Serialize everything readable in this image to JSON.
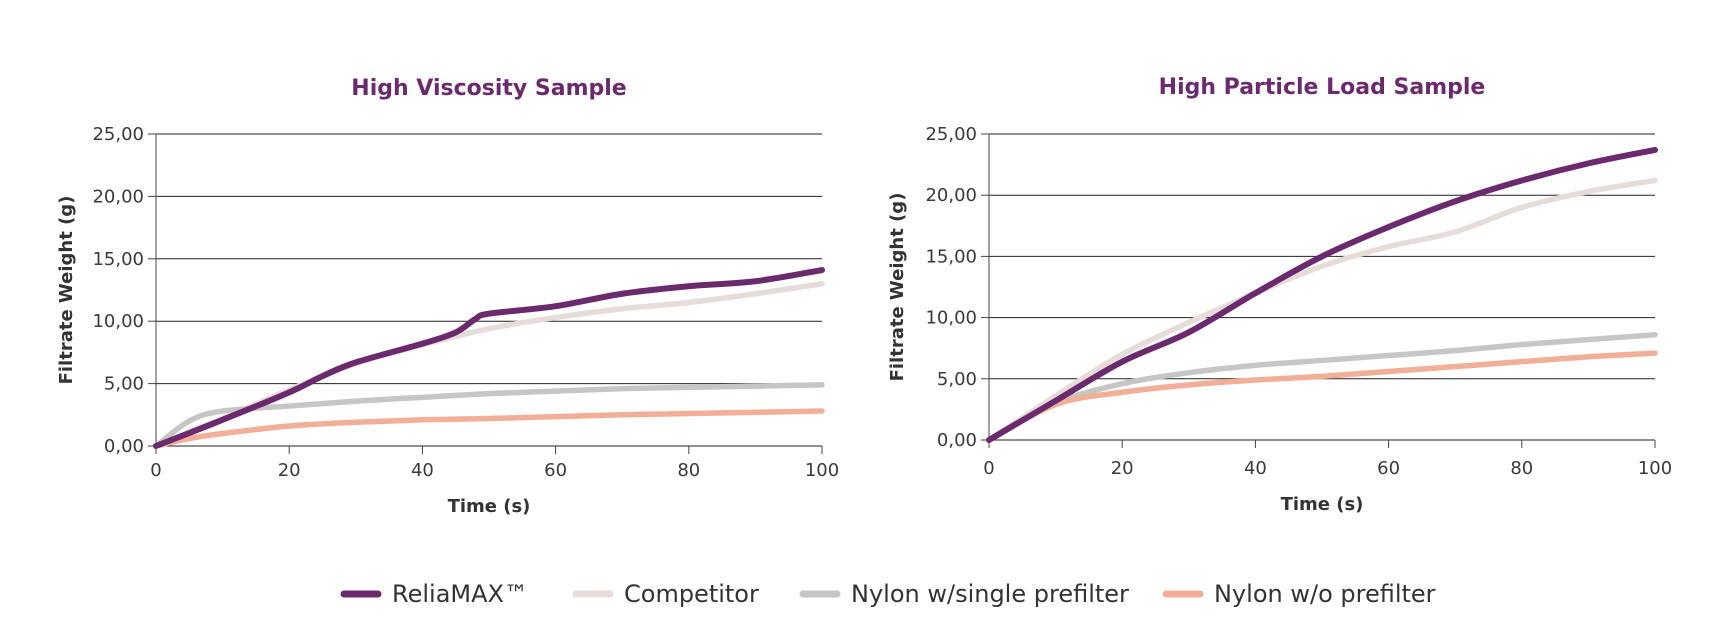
{
  "chart_data": [
    {
      "type": "line",
      "title": "High Viscosity Sample",
      "xlabel": "Time (s)",
      "ylabel": "Filtrate Weight (g)",
      "xlim": [
        0,
        100
      ],
      "ylim": [
        0,
        25
      ],
      "x_ticks": [
        "0",
        "20",
        "40",
        "60",
        "80",
        "100"
      ],
      "y_ticks": [
        "0,00",
        "5,00",
        "10,00",
        "15,00",
        "20,00",
        "25,00"
      ],
      "grid": "horizontal",
      "series": [
        {
          "name": "Competitor",
          "color": "#e6dcd9",
          "x": [
            0,
            10,
            20,
            30,
            40,
            50,
            60,
            70,
            80,
            90,
            100
          ],
          "y": [
            0,
            2.2,
            4.5,
            6.6,
            8.1,
            9.4,
            10.3,
            11.0,
            11.5,
            12.2,
            13.0
          ]
        },
        {
          "name": "Nylon w/single prefilter",
          "color": "#c6c6c6",
          "x": [
            0,
            5,
            10,
            20,
            30,
            40,
            50,
            60,
            70,
            80,
            90,
            100
          ],
          "y": [
            0,
            2.0,
            2.8,
            3.2,
            3.6,
            3.9,
            4.2,
            4.4,
            4.6,
            4.7,
            4.8,
            4.9
          ]
        },
        {
          "name": "Nylon w/o prefilter",
          "color": "#f2ae96",
          "x": [
            0,
            5,
            10,
            20,
            30,
            40,
            50,
            60,
            70,
            80,
            90,
            100
          ],
          "y": [
            0,
            0.6,
            1.0,
            1.6,
            1.9,
            2.1,
            2.2,
            2.35,
            2.5,
            2.6,
            2.7,
            2.8
          ]
        },
        {
          "name": "ReliaMAX™",
          "color": "#6b2a6e",
          "x": [
            0,
            10,
            20,
            25,
            30,
            40,
            45,
            48,
            50,
            60,
            70,
            80,
            90,
            100
          ],
          "y": [
            0,
            2.1,
            4.3,
            5.6,
            6.7,
            8.2,
            9.1,
            10.2,
            10.6,
            11.2,
            12.2,
            12.8,
            13.2,
            14.1
          ]
        }
      ]
    },
    {
      "type": "line",
      "title": "High Particle Load Sample",
      "xlabel": "Time (s)",
      "ylabel": "Filtrate Weight (g)",
      "xlim": [
        0,
        100
      ],
      "ylim": [
        0,
        25
      ],
      "x_ticks": [
        "0",
        "20",
        "40",
        "60",
        "80",
        "100"
      ],
      "y_ticks": [
        "0,00",
        "5,00",
        "10,00",
        "15,00",
        "20,00",
        "25,00"
      ],
      "grid": "horizontal",
      "series": [
        {
          "name": "Competitor",
          "color": "#e6dcd9",
          "x": [
            0,
            10,
            20,
            30,
            40,
            50,
            60,
            70,
            80,
            90,
            100
          ],
          "y": [
            0,
            3.6,
            7.0,
            9.6,
            12.0,
            14.2,
            15.8,
            17.0,
            19.0,
            20.3,
            21.2
          ]
        },
        {
          "name": "Nylon w/single prefilter",
          "color": "#c6c6c6",
          "x": [
            0,
            10,
            20,
            30,
            40,
            50,
            60,
            70,
            80,
            90,
            100
          ],
          "y": [
            0,
            3.0,
            4.6,
            5.5,
            6.1,
            6.5,
            6.9,
            7.3,
            7.8,
            8.2,
            8.6
          ]
        },
        {
          "name": "Nylon w/o prefilter",
          "color": "#f2ae96",
          "x": [
            0,
            10,
            20,
            30,
            40,
            50,
            60,
            70,
            80,
            90,
            100
          ],
          "y": [
            0,
            2.9,
            3.9,
            4.5,
            4.9,
            5.2,
            5.6,
            6.0,
            6.4,
            6.8,
            7.1
          ]
        },
        {
          "name": "ReliaMAX™",
          "color": "#6b2a6e",
          "x": [
            0,
            10,
            20,
            30,
            40,
            50,
            60,
            70,
            80,
            90,
            100
          ],
          "y": [
            0,
            3.2,
            6.4,
            8.8,
            12.0,
            15.0,
            17.4,
            19.5,
            21.2,
            22.6,
            23.7
          ]
        }
      ]
    }
  ],
  "legend": {
    "placement": "bottom-center",
    "items": [
      {
        "label": "ReliaMAX™",
        "color": "#6b2a6e"
      },
      {
        "label": "Competitor",
        "color": "#e6dcd9"
      },
      {
        "label": "Nylon w/single prefilter",
        "color": "#c6c6c6"
      },
      {
        "label": "Nylon w/o prefilter",
        "color": "#f2ae96"
      }
    ]
  }
}
